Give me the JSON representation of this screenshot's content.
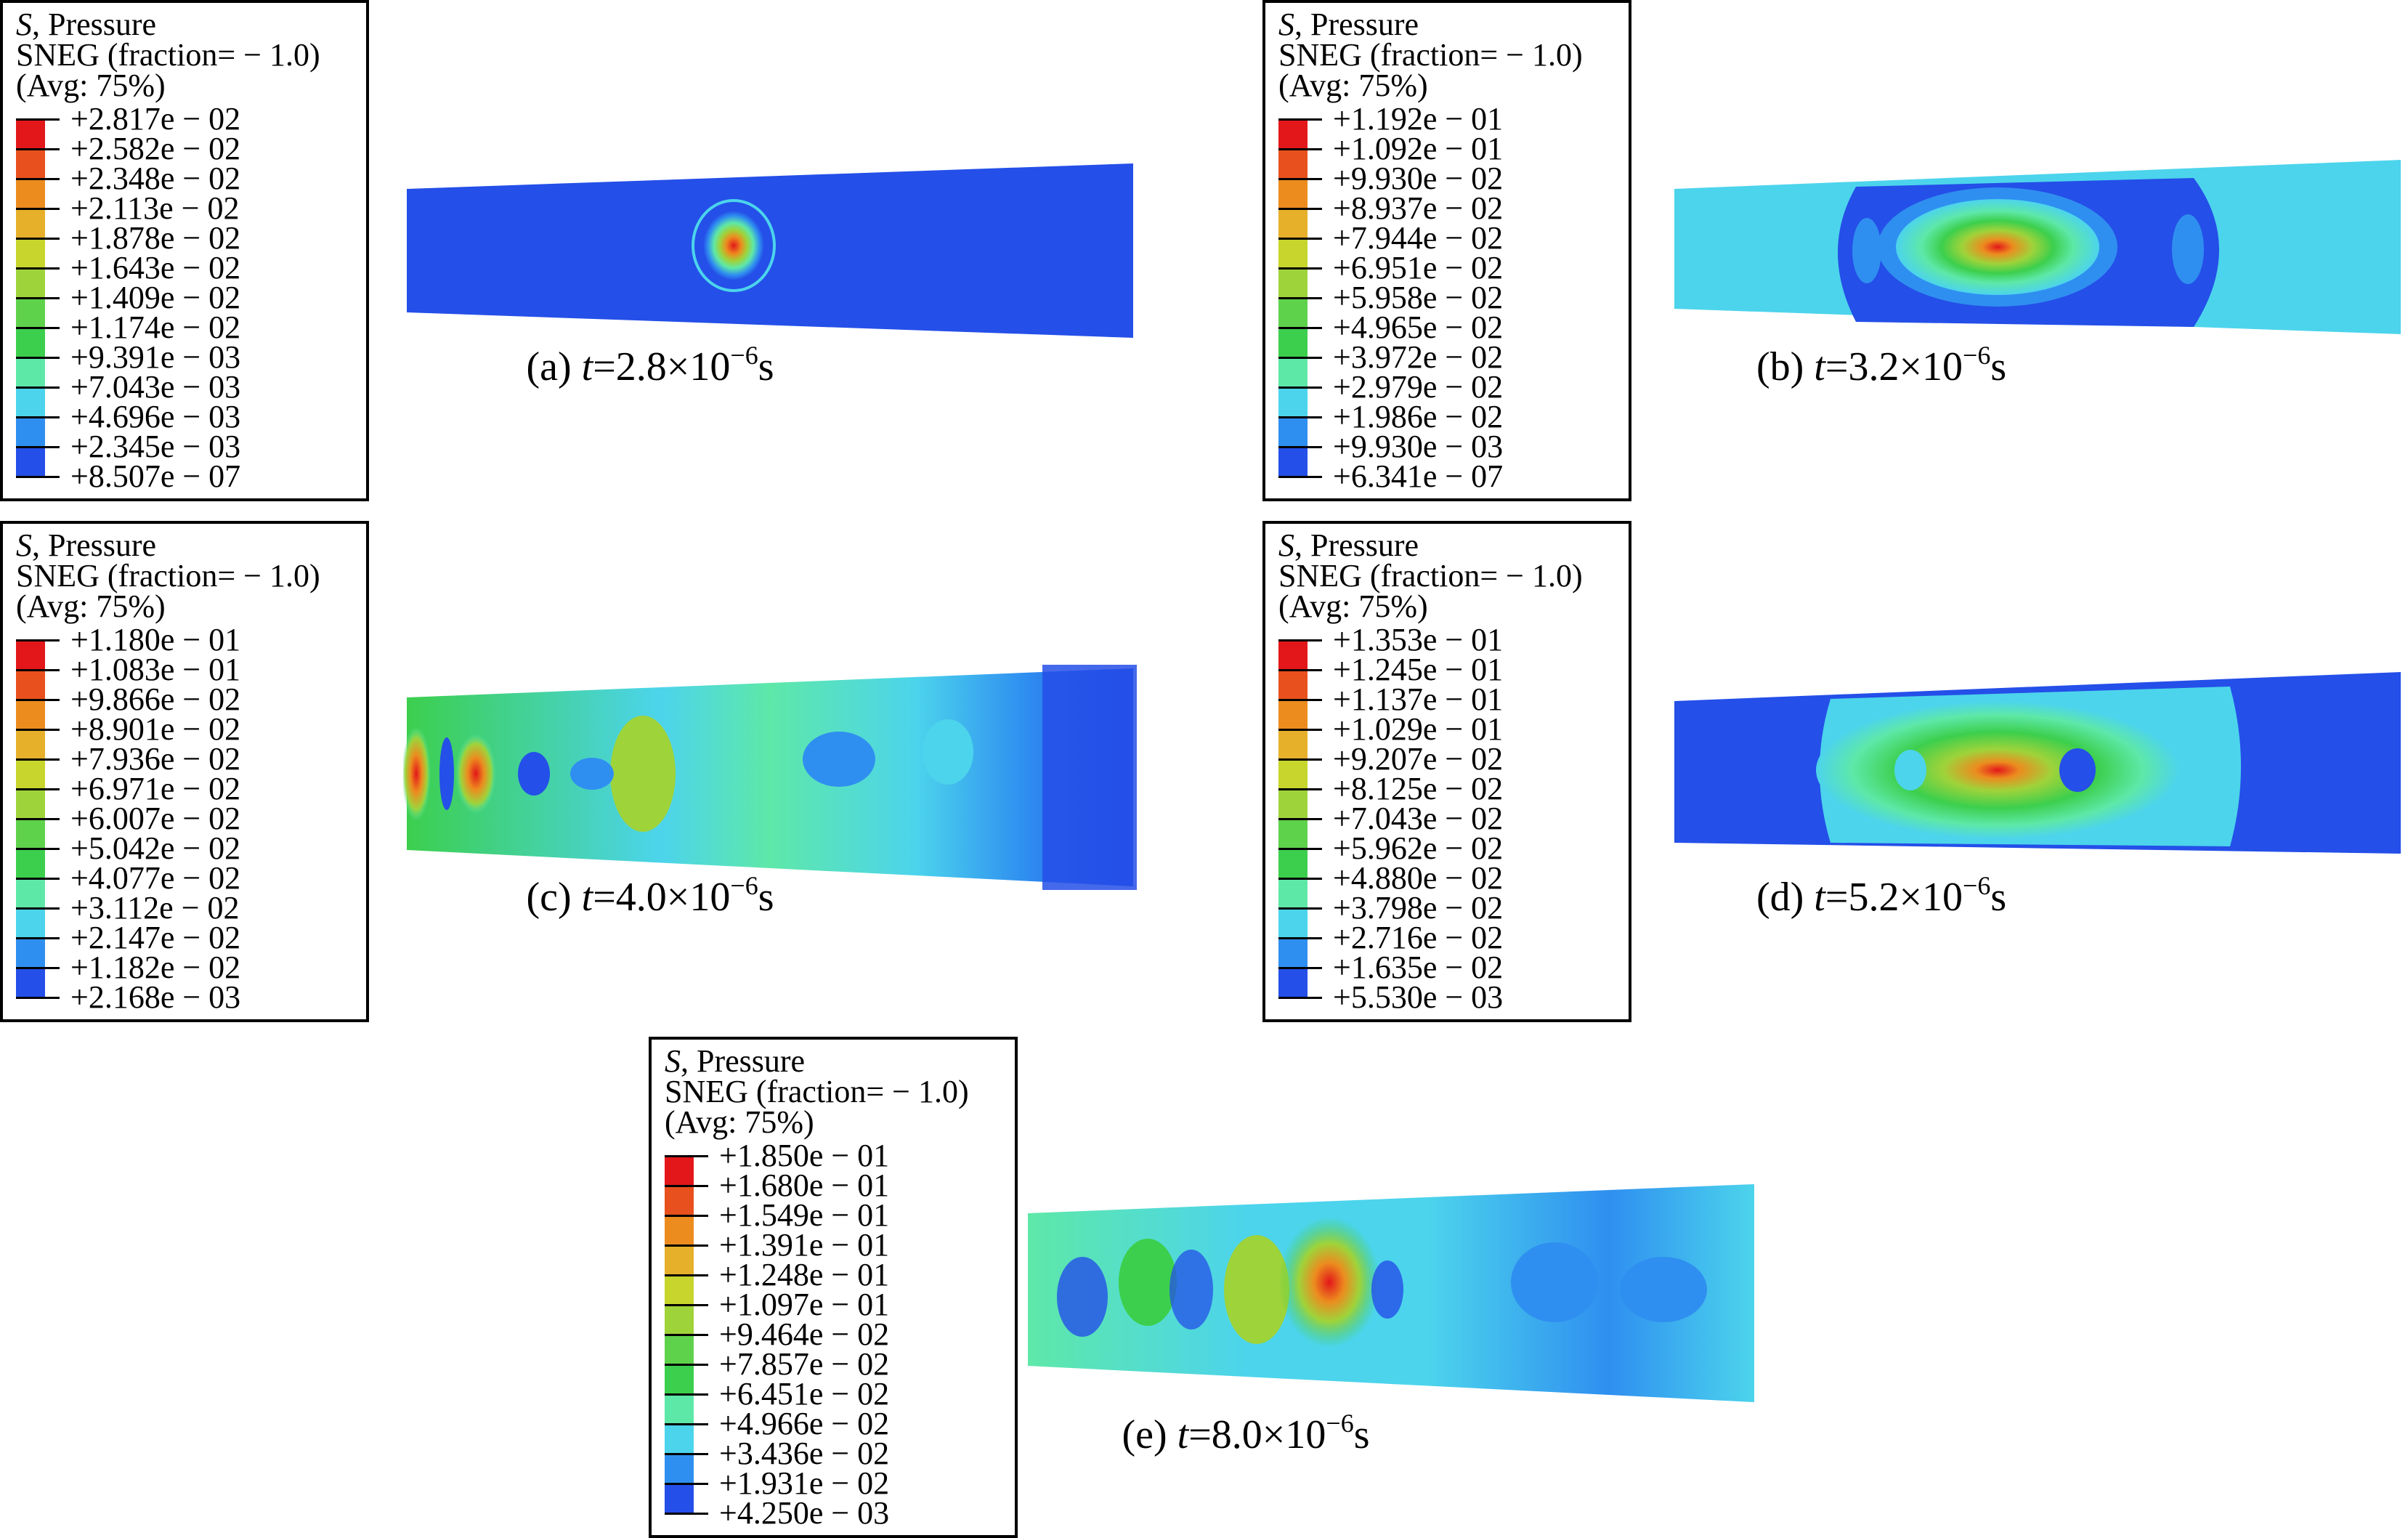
{
  "legend_header": {
    "line1_var": "S",
    "line1_rest": ", Pressure",
    "line2": "SNEG (fraction= − 1.0)",
    "line3": "(Avg: 75%)"
  },
  "colors": [
    "#e3171a",
    "#e8511d",
    "#ec8c1f",
    "#e6b02a",
    "#c7d52c",
    "#9fd33a",
    "#5fd24c",
    "#3ccf4d",
    "#5ee8a8",
    "#4cd4ec",
    "#2f8ff0",
    "#244fe8",
    "#1f32d6"
  ],
  "panels": [
    {
      "id": "a",
      "caption_pre": "(a) ",
      "t": "t",
      "caption_eq": "=2.8×10",
      "exp": "−6",
      "unit": "s",
      "values": [
        "+2.817e − 02",
        "+2.582e − 02",
        "+2.348e − 02",
        "+2.113e − 02",
        "+1.878e − 02",
        "+1.643e − 02",
        "+1.409e − 02",
        "+1.174e − 02",
        "+9.391e − 03",
        "+7.043e − 03",
        "+4.696e − 03",
        "+2.345e − 03",
        "+8.507e − 07"
      ]
    },
    {
      "id": "b",
      "caption_pre": "(b) ",
      "t": "t",
      "caption_eq": "=3.2×10",
      "exp": "−6",
      "unit": "s",
      "values": [
        "+1.192e − 01",
        "+1.092e − 01",
        "+9.930e − 02",
        "+8.937e − 02",
        "+7.944e − 02",
        "+6.951e − 02",
        "+5.958e − 02",
        "+4.965e − 02",
        "+3.972e − 02",
        "+2.979e − 02",
        "+1.986e − 02",
        "+9.930e − 03",
        "+6.341e − 07"
      ]
    },
    {
      "id": "c",
      "caption_pre": "(c) ",
      "t": "t",
      "caption_eq": "=4.0×10",
      "exp": "−6",
      "unit": "s",
      "values": [
        "+1.180e − 01",
        "+1.083e − 01",
        "+9.866e − 02",
        "+8.901e − 02",
        "+7.936e − 02",
        "+6.971e − 02",
        "+6.007e − 02",
        "+5.042e − 02",
        "+4.077e − 02",
        "+3.112e − 02",
        "+2.147e − 02",
        "+1.182e − 02",
        "+2.168e − 03"
      ]
    },
    {
      "id": "d",
      "caption_pre": "(d) ",
      "t": "t",
      "caption_eq": "=5.2×10",
      "exp": "−6",
      "unit": "s",
      "values": [
        "+1.353e − 01",
        "+1.245e − 01",
        "+1.137e − 01",
        "+1.029e − 01",
        "+9.207e − 02",
        "+8.125e − 02",
        "+7.043e − 02",
        "+5.962e − 02",
        "+4.880e − 02",
        "+3.798e − 02",
        "+2.716e − 02",
        "+1.635e − 02",
        "+5.530e − 03"
      ]
    },
    {
      "id": "e",
      "caption_pre": "(e) ",
      "t": "t",
      "caption_eq": "=8.0×10",
      "exp": "−6",
      "unit": "s",
      "values": [
        "+1.850e − 01",
        "+1.680e − 01",
        "+1.549e − 01",
        "+1.391e − 01",
        "+1.248e − 01",
        "+1.097e − 01",
        "+9.464e − 02",
        "+7.857e − 02",
        "+6.451e − 02",
        "+4.966e − 02",
        "+3.436e − 02",
        "+1.931e − 02",
        "+4.250e − 03"
      ]
    }
  ]
}
